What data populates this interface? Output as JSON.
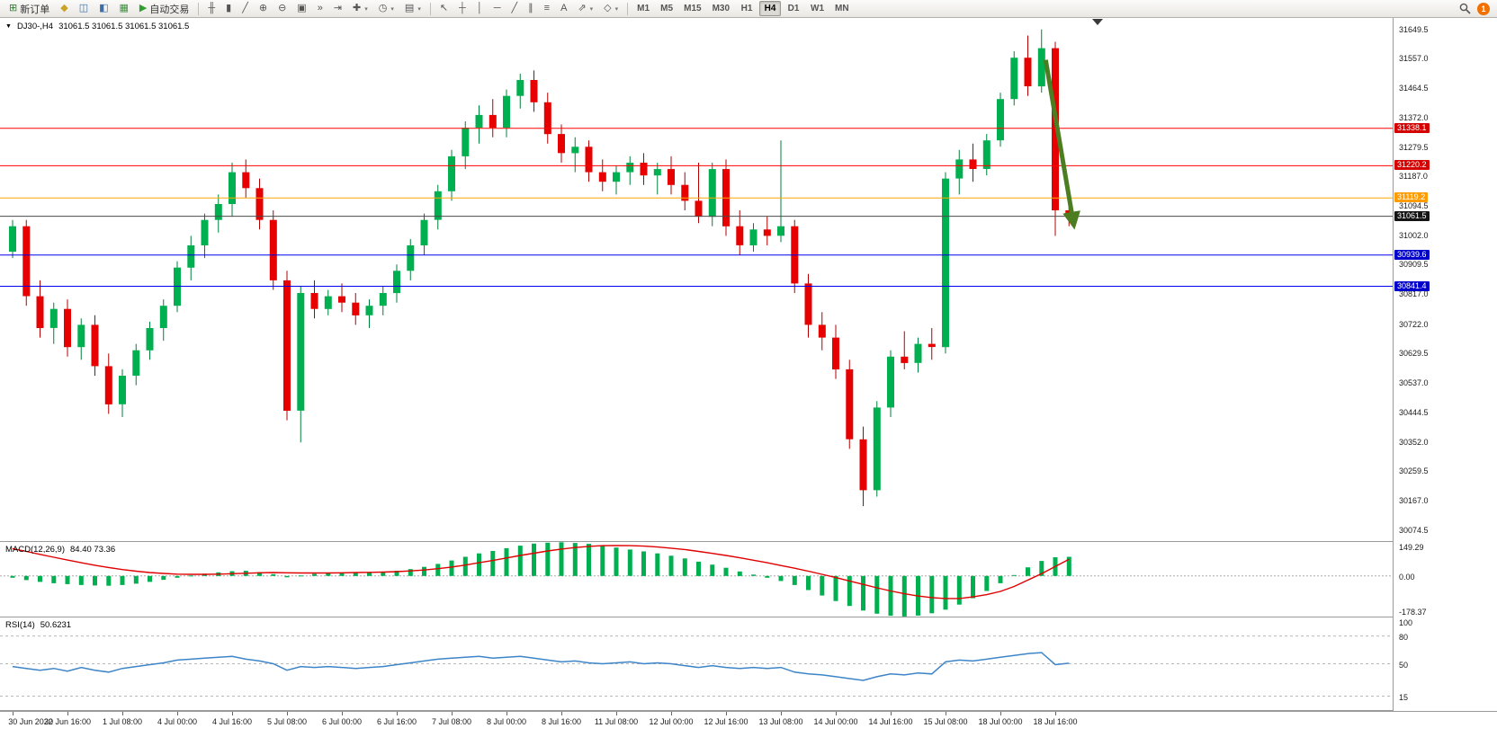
{
  "toolbar": {
    "file_buttons": [
      {
        "name": "new-order-button",
        "glyph": "⊞",
        "color": "#2f7d32",
        "label": "新订单"
      },
      {
        "name": "market-watch-button",
        "glyph": "◆",
        "color": "#c9a227"
      },
      {
        "name": "data-window-button",
        "glyph": "◫",
        "color": "#3c6ea5"
      },
      {
        "name": "navigator-button",
        "glyph": "◧",
        "color": "#3c6ea5"
      },
      {
        "name": "terminal-button",
        "glyph": "▦",
        "color": "#3f8f3f"
      },
      {
        "name": "auto-trading-button",
        "glyph": "▶",
        "color": "#2e9e2e",
        "label": "自动交易"
      }
    ],
    "chart_buttons": [
      {
        "name": "bar-chart-button",
        "glyph": "╫"
      },
      {
        "name": "candlestick-chart-button",
        "glyph": "▮"
      },
      {
        "name": "line-chart-button",
        "glyph": "╱"
      },
      {
        "name": "zoom-in-button",
        "glyph": "⊕"
      },
      {
        "name": "zoom-out-button",
        "glyph": "⊖"
      },
      {
        "name": "tile-windows-button",
        "glyph": "▣"
      },
      {
        "name": "auto-scroll-button",
        "glyph": "»"
      },
      {
        "name": "chart-shift-button",
        "glyph": "⇥"
      },
      {
        "name": "indicators-button",
        "glyph": "✚",
        "dropdown": true
      },
      {
        "name": "periods-button",
        "glyph": "◷",
        "dropdown": true
      },
      {
        "name": "templates-button",
        "glyph": "▤",
        "dropdown": true
      }
    ],
    "drawing_buttons": [
      {
        "name": "cursor-button",
        "glyph": "↖"
      },
      {
        "name": "crosshair-button",
        "glyph": "┼"
      },
      {
        "name": "vertical-line-button",
        "glyph": "│"
      },
      {
        "name": "horizontal-line-button",
        "glyph": "─"
      },
      {
        "name": "trendline-button",
        "glyph": "╱"
      },
      {
        "name": "channel-button",
        "glyph": "∥"
      },
      {
        "name": "fibonacci-button",
        "glyph": "≡"
      },
      {
        "name": "text-button",
        "glyph": "A"
      },
      {
        "name": "arrows-button",
        "glyph": "⇗",
        "dropdown": true
      },
      {
        "name": "shapes-button",
        "glyph": "◇",
        "dropdown": true
      }
    ],
    "timeframes": [
      "M1",
      "M5",
      "M15",
      "M30",
      "H1",
      "H4",
      "D1",
      "W1",
      "MN"
    ],
    "active_timeframe": "H4",
    "notification_count": "1"
  },
  "chart_data": [
    {
      "type": "candlestick",
      "symbol": "DJ30-,H4",
      "ohlc_text": "31061.5 31061.5 31061.5 31061.5",
      "collapse_icon": "▼",
      "ylim": [
        30040,
        31685
      ],
      "y_ticks": [
        "31649.5",
        "31557.0",
        "31464.5",
        "31372.0",
        "31279.5",
        "31187.0",
        "31094.5",
        "31002.0",
        "30909.5",
        "30817.0",
        "30722.0",
        "30629.5",
        "30537.0",
        "30444.5",
        "30352.0",
        "30259.5",
        "30167.0",
        "30074.5"
      ],
      "current_price": 31061.5,
      "hlines": [
        {
          "price": 31338.1,
          "label": "31338.1",
          "line": "#ff0000",
          "badge": "#d40000"
        },
        {
          "price": 31220.2,
          "label": "31220.2",
          "line": "#ff0000",
          "badge": "#d40000"
        },
        {
          "price": 31119.2,
          "label": "31119.2",
          "line": "#ffa500",
          "badge": "#ff9c00"
        },
        {
          "price": 31061.5,
          "label": "31061.5",
          "line": "#4a4a4a",
          "badge": "#141414"
        },
        {
          "price": 30939.6,
          "label": "30939.6",
          "line": "#0000ee",
          "badge": "#0000cc"
        },
        {
          "price": 30841.4,
          "label": "30841.4",
          "line": "#0000ee",
          "badge": "#0000cc"
        }
      ],
      "arrow": {
        "from_index": 75.3,
        "from_price": 31553,
        "to_index": 77.3,
        "to_price": 31047,
        "color": "#4c7d21"
      },
      "x_labels": [
        [
          0,
          "30 Jun 2022"
        ],
        [
          4,
          "30 Jun 16:00"
        ],
        [
          8,
          "1 Jul 08:00"
        ],
        [
          12,
          "4 Jul 00:00"
        ],
        [
          16,
          "4 Jul 16:00"
        ],
        [
          20,
          "5 Jul 08:00"
        ],
        [
          24,
          "6 Jul 00:00"
        ],
        [
          28,
          "6 Jul 16:00"
        ],
        [
          32,
          "7 Jul 08:00"
        ],
        [
          36,
          "8 Jul 00:00"
        ],
        [
          40,
          "8 Jul 16:00"
        ],
        [
          44,
          "11 Jul 08:00"
        ],
        [
          48,
          "12 Jul 00:00"
        ],
        [
          52,
          "12 Jul 16:00"
        ],
        [
          56,
          "13 Jul 08:00"
        ],
        [
          60,
          "14 Jul 00:00"
        ],
        [
          64,
          "14 Jul 16:00"
        ],
        [
          68,
          "15 Jul 08:00"
        ],
        [
          72,
          "18 Jul 00:00"
        ],
        [
          76,
          "18 Jul 16:00"
        ]
      ],
      "candles": [
        [
          30950,
          31050,
          30930,
          31030
        ],
        [
          31030,
          31050,
          30780,
          30810
        ],
        [
          30810,
          30860,
          30680,
          30710
        ],
        [
          30710,
          30790,
          30660,
          30770
        ],
        [
          30770,
          30800,
          30620,
          30650
        ],
        [
          30650,
          30740,
          30610,
          30720
        ],
        [
          30720,
          30750,
          30560,
          30590
        ],
        [
          30590,
          30630,
          30440,
          30470
        ],
        [
          30470,
          30580,
          30430,
          30560
        ],
        [
          30560,
          30660,
          30530,
          30640
        ],
        [
          30640,
          30730,
          30610,
          30710
        ],
        [
          30710,
          30800,
          30670,
          30780
        ],
        [
          30780,
          30920,
          30760,
          30900
        ],
        [
          30900,
          31000,
          30860,
          30970
        ],
        [
          30970,
          31070,
          30930,
          31050
        ],
        [
          31050,
          31130,
          31010,
          31100
        ],
        [
          31100,
          31230,
          31060,
          31200
        ],
        [
          31200,
          31240,
          31120,
          31150
        ],
        [
          31150,
          31180,
          31020,
          31050
        ],
        [
          31050,
          31080,
          30830,
          30860
        ],
        [
          30860,
          30890,
          30420,
          30450
        ],
        [
          30450,
          30840,
          30350,
          30820
        ],
        [
          30820,
          30860,
          30740,
          30770
        ],
        [
          30770,
          30830,
          30750,
          30810
        ],
        [
          30810,
          30850,
          30760,
          30790
        ],
        [
          30790,
          30820,
          30720,
          30750
        ],
        [
          30750,
          30800,
          30710,
          30780
        ],
        [
          30780,
          30840,
          30750,
          30820
        ],
        [
          30820,
          30910,
          30790,
          30890
        ],
        [
          30890,
          30990,
          30860,
          30970
        ],
        [
          30970,
          31070,
          30940,
          31050
        ],
        [
          31050,
          31160,
          31020,
          31140
        ],
        [
          31140,
          31270,
          31110,
          31250
        ],
        [
          31250,
          31360,
          31210,
          31340
        ],
        [
          31340,
          31410,
          31290,
          31380
        ],
        [
          31380,
          31430,
          31310,
          31340
        ],
        [
          31340,
          31460,
          31310,
          31440
        ],
        [
          31440,
          31510,
          31400,
          31490
        ],
        [
          31490,
          31520,
          31390,
          31420
        ],
        [
          31420,
          31450,
          31290,
          31320
        ],
        [
          31320,
          31350,
          31230,
          31260
        ],
        [
          31260,
          31310,
          31200,
          31280
        ],
        [
          31280,
          31300,
          31170,
          31200
        ],
        [
          31200,
          31240,
          31140,
          31170
        ],
        [
          31170,
          31220,
          31130,
          31200
        ],
        [
          31200,
          31250,
          31160,
          31230
        ],
        [
          31230,
          31260,
          31160,
          31190
        ],
        [
          31190,
          31230,
          31130,
          31210
        ],
        [
          31210,
          31250,
          31130,
          31160
        ],
        [
          31160,
          31200,
          31080,
          31110
        ],
        [
          31110,
          31230,
          31040,
          31060
        ],
        [
          31060,
          31230,
          31030,
          31210
        ],
        [
          31210,
          31240,
          31000,
          31030
        ],
        [
          31030,
          31080,
          30940,
          30970
        ],
        [
          30970,
          31040,
          30950,
          31020
        ],
        [
          31020,
          31060,
          30970,
          31000
        ],
        [
          31000,
          31300,
          30980,
          31030
        ],
        [
          31030,
          31050,
          30820,
          30850
        ],
        [
          30850,
          30880,
          30680,
          30720
        ],
        [
          30720,
          30760,
          30640,
          30680
        ],
        [
          30680,
          30720,
          30550,
          30580
        ],
        [
          30580,
          30610,
          30330,
          30360
        ],
        [
          30360,
          30400,
          30150,
          30200
        ],
        [
          30200,
          30480,
          30180,
          30460
        ],
        [
          30460,
          30640,
          30430,
          30620
        ],
        [
          30620,
          30700,
          30580,
          30600
        ],
        [
          30600,
          30680,
          30570,
          30660
        ],
        [
          30660,
          30710,
          30610,
          30650
        ],
        [
          30650,
          31200,
          30630,
          31180
        ],
        [
          31180,
          31270,
          31130,
          31240
        ],
        [
          31240,
          31290,
          31170,
          31210
        ],
        [
          31210,
          31320,
          31190,
          31300
        ],
        [
          31300,
          31450,
          31280,
          31430
        ],
        [
          31430,
          31580,
          31410,
          31560
        ],
        [
          31560,
          31630,
          31440,
          31470
        ],
        [
          31470,
          31649,
          31450,
          31590
        ],
        [
          31590,
          31610,
          31000,
          31080
        ],
        [
          31080,
          31110,
          31030,
          31061.5
        ]
      ]
    },
    {
      "type": "bar",
      "label": "MACD(12,26,9)",
      "values_text": "84.40 73.36",
      "ylim": [
        -178.37,
        149.29
      ],
      "y_ticks": [
        "149.29",
        "0.00",
        "-178.37"
      ],
      "histogram": [
        -8,
        -18,
        -26,
        -32,
        -36,
        -40,
        -42,
        -43,
        -40,
        -34,
        -26,
        -17,
        -8,
        2,
        10,
        16,
        21,
        23,
        17,
        8,
        -6,
        2,
        9,
        13,
        15,
        16,
        17,
        19,
        23,
        30,
        40,
        53,
        68,
        84,
        99,
        110,
        122,
        133,
        142,
        146,
        148,
        145,
        141,
        133,
        125,
        116,
        108,
        99,
        89,
        77,
        63,
        50,
        36,
        20,
        6,
        -8,
        -22,
        -40,
        -62,
        -86,
        -110,
        -132,
        -152,
        -166,
        -175,
        -178,
        -174,
        -164,
        -148,
        -126,
        -98,
        -66,
        -32,
        4,
        38,
        66,
        82,
        84
      ],
      "signal": [
        120,
        108,
        95,
        82,
        70,
        58,
        47,
        37,
        28,
        21,
        15,
        11,
        8,
        7,
        7,
        8,
        10,
        12,
        14,
        15,
        14,
        13,
        13,
        13,
        14,
        15,
        16,
        17,
        19,
        22,
        26,
        32,
        39,
        48,
        58,
        68,
        79,
        90,
        100,
        110,
        118,
        125,
        130,
        133,
        134,
        133,
        131,
        127,
        122,
        116,
        108,
        99,
        90,
        80,
        69,
        58,
        46,
        34,
        21,
        7,
        -7,
        -22,
        -37,
        -52,
        -66,
        -78,
        -88,
        -95,
        -99,
        -99,
        -92,
        -82,
        -68,
        -46,
        -18,
        10,
        42,
        73
      ]
    },
    {
      "type": "line",
      "label": "RSI(14)",
      "values_text": "50.6231",
      "ylim": [
        0,
        100
      ],
      "levels": [
        80,
        50,
        15
      ],
      "y_ticks": [
        "100",
        "80",
        "50",
        "15"
      ],
      "values": [
        47,
        45,
        43,
        45,
        42,
        46,
        43,
        41,
        45,
        47,
        49,
        51,
        54,
        55,
        56,
        57,
        58,
        55,
        53,
        50,
        43,
        47,
        46,
        47,
        46,
        45,
        46,
        47,
        49,
        51,
        53,
        55,
        56,
        57,
        58,
        56,
        57,
        58,
        56,
        54,
        52,
        53,
        51,
        50,
        51,
        52,
        50,
        51,
        50,
        48,
        46,
        48,
        46,
        45,
        46,
        45,
        46,
        41,
        39,
        38,
        36,
        34,
        32,
        36,
        39,
        38,
        40,
        39,
        52,
        54,
        53,
        55,
        57,
        59,
        61,
        62,
        49,
        50.62
      ]
    }
  ]
}
